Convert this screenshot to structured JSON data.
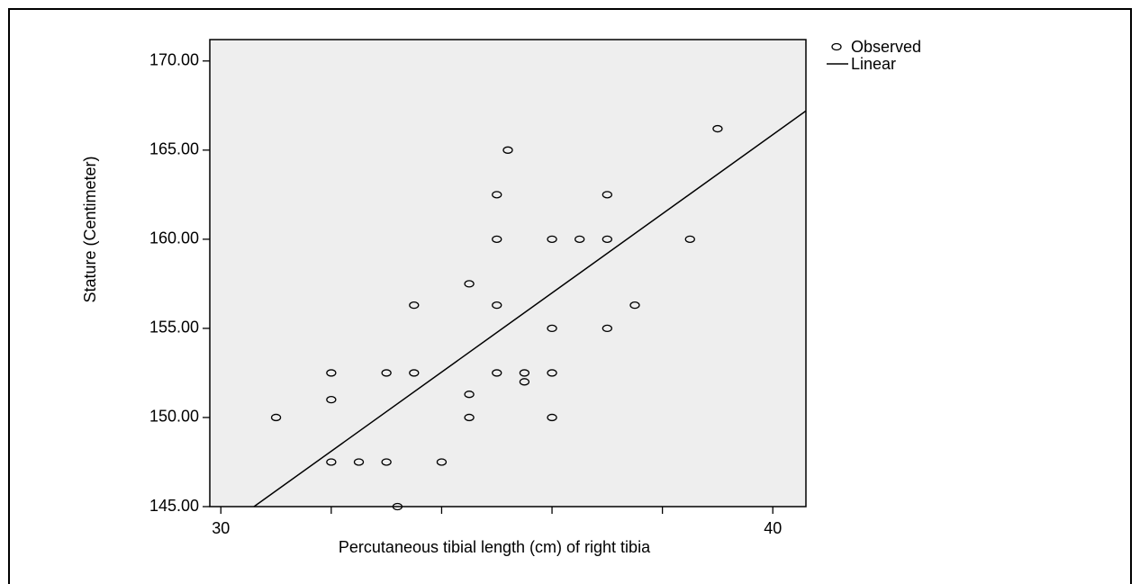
{
  "chart_data": {
    "type": "scatter",
    "title": "",
    "xlabel": "Percutaneous tibial length (cm) of right tibia",
    "ylabel": "Stature (Centimeter)",
    "xlim": [
      29.8,
      40.6
    ],
    "ylim": [
      145.0,
      171.2
    ],
    "x_ticks": [
      30,
      40
    ],
    "x_minor_ticks": [
      32,
      34,
      36,
      38
    ],
    "y_ticks": [
      145.0,
      150.0,
      155.0,
      160.0,
      165.0,
      170.0
    ],
    "x_tick_labels": [
      "30",
      "40"
    ],
    "y_tick_labels": [
      "145.00",
      "150.00",
      "155.00",
      "160.00",
      "165.00",
      "170.00"
    ],
    "legend": {
      "position": "top-right",
      "observed_label": "Observed",
      "linear_label": "Linear"
    },
    "background": "#eeeeee",
    "series": [
      {
        "name": "Observed",
        "kind": "points",
        "points": [
          [
            31,
            150.0
          ],
          [
            32,
            152.5
          ],
          [
            32,
            151.0
          ],
          [
            32,
            147.5
          ],
          [
            32.5,
            147.5
          ],
          [
            33,
            152.5
          ],
          [
            33,
            147.5
          ],
          [
            33.2,
            145.0
          ],
          [
            33.5,
            156.3
          ],
          [
            33.5,
            152.5
          ],
          [
            34,
            147.5
          ],
          [
            34.5,
            157.5
          ],
          [
            34.5,
            151.3
          ],
          [
            34.5,
            150.0
          ],
          [
            35,
            162.5
          ],
          [
            35,
            160.0
          ],
          [
            35,
            156.3
          ],
          [
            35,
            152.5
          ],
          [
            35.2,
            165.0
          ],
          [
            35.5,
            152.5
          ],
          [
            35.5,
            152.0
          ],
          [
            36,
            160.0
          ],
          [
            36,
            155.0
          ],
          [
            36,
            152.5
          ],
          [
            36,
            150.0
          ],
          [
            36.5,
            160.0
          ],
          [
            37,
            162.5
          ],
          [
            37,
            160.0
          ],
          [
            37,
            155.0
          ],
          [
            37.5,
            156.3
          ],
          [
            38.5,
            160.0
          ],
          [
            39,
            166.2
          ]
        ]
      },
      {
        "name": "Linear",
        "kind": "line",
        "points": [
          [
            30.6,
            145.0
          ],
          [
            40.6,
            167.2
          ]
        ]
      }
    ]
  }
}
